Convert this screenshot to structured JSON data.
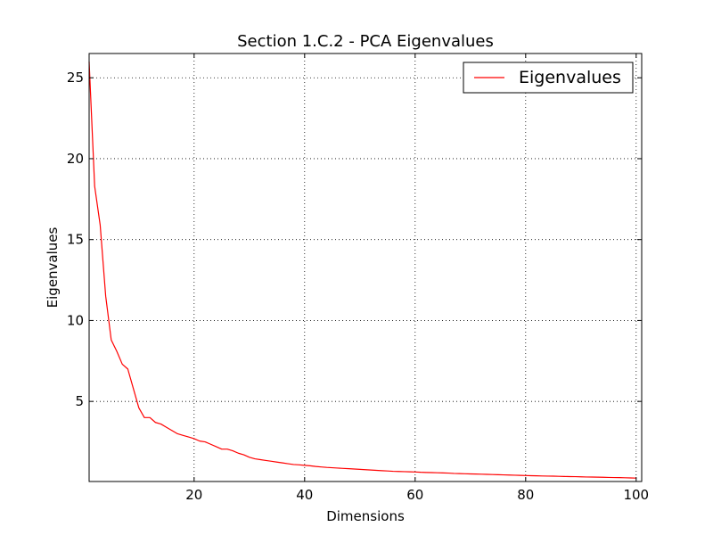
{
  "chart_data": {
    "type": "line",
    "title": "Section 1.C.2 - PCA Eigenvalues",
    "xlabel": "Dimensions",
    "ylabel": "Eigenvalues",
    "xlim": [
      1,
      101
    ],
    "ylim": [
      0.05,
      26.5
    ],
    "xticks": [
      20,
      40,
      60,
      80,
      100
    ],
    "yticks": [
      5,
      10,
      15,
      20,
      25
    ],
    "grid": true,
    "legend_position": "top-right",
    "series": [
      {
        "name": "Eigenvalues",
        "color": "#ff0000",
        "x": [
          1,
          2,
          3,
          4,
          5,
          6,
          7,
          8,
          9,
          10,
          11,
          12,
          13,
          14,
          15,
          16,
          17,
          18,
          19,
          20,
          21,
          22,
          23,
          24,
          25,
          26,
          27,
          28,
          29,
          30,
          31,
          32,
          33,
          34,
          35,
          36,
          37,
          38,
          39,
          40,
          41,
          42,
          43,
          44,
          45,
          46,
          47,
          48,
          49,
          50,
          51,
          52,
          53,
          54,
          55,
          56,
          57,
          58,
          59,
          60,
          61,
          62,
          63,
          64,
          65,
          66,
          67,
          68,
          69,
          70,
          71,
          72,
          73,
          74,
          75,
          76,
          77,
          78,
          79,
          80,
          81,
          82,
          83,
          84,
          85,
          86,
          87,
          88,
          89,
          90,
          91,
          92,
          93,
          94,
          95,
          96,
          97,
          98,
          99,
          100
        ],
        "y": [
          26.0,
          18.3,
          15.9,
          11.5,
          8.8,
          8.1,
          7.3,
          7.0,
          5.8,
          4.6,
          4.0,
          4.0,
          3.7,
          3.6,
          3.4,
          3.2,
          3.0,
          2.9,
          2.8,
          2.7,
          2.55,
          2.5,
          2.35,
          2.2,
          2.05,
          2.05,
          1.95,
          1.8,
          1.7,
          1.55,
          1.45,
          1.4,
          1.35,
          1.3,
          1.25,
          1.2,
          1.15,
          1.1,
          1.08,
          1.05,
          1.02,
          0.98,
          0.95,
          0.92,
          0.9,
          0.88,
          0.86,
          0.84,
          0.82,
          0.8,
          0.78,
          0.76,
          0.74,
          0.72,
          0.7,
          0.68,
          0.67,
          0.66,
          0.65,
          0.64,
          0.62,
          0.61,
          0.6,
          0.59,
          0.58,
          0.57,
          0.55,
          0.54,
          0.53,
          0.52,
          0.51,
          0.5,
          0.49,
          0.48,
          0.47,
          0.46,
          0.45,
          0.44,
          0.43,
          0.42,
          0.41,
          0.4,
          0.39,
          0.385,
          0.38,
          0.37,
          0.36,
          0.355,
          0.35,
          0.34,
          0.33,
          0.325,
          0.32,
          0.31,
          0.3,
          0.295,
          0.29,
          0.28,
          0.27,
          0.26
        ]
      }
    ]
  }
}
